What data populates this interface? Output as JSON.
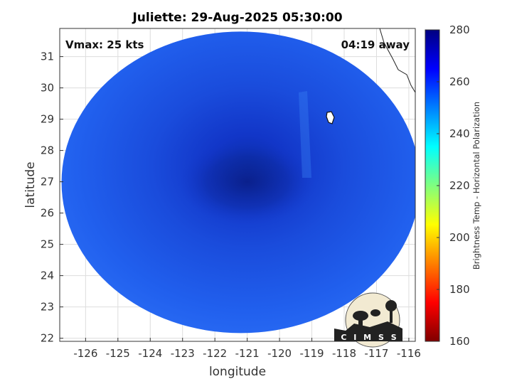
{
  "title": "Juliette: 29-Aug-2025 05:30:00",
  "overlay": {
    "vmax": "Vmax: 25 kts",
    "away": "04:19 away"
  },
  "logo": {
    "text": "CIMSS"
  },
  "chart_data": {
    "type": "heatmap",
    "title": "Juliette: 29-Aug-2025 05:30:00",
    "xlabel": "longitude",
    "ylabel": "latitude",
    "xlim": [
      -126.8,
      -115.8
    ],
    "ylim": [
      21.9,
      31.9
    ],
    "x_ticks": [
      -126,
      -125,
      -124,
      -123,
      -122,
      -121,
      -120,
      -119,
      -118,
      -117,
      -116
    ],
    "y_ticks": [
      22,
      23,
      24,
      25,
      26,
      27,
      28,
      29,
      30,
      31
    ],
    "grid": true,
    "colorbar": {
      "label": "Brightness Temp - Horizontal Polarization",
      "range": [
        160,
        280
      ],
      "ticks": [
        160,
        180,
        200,
        220,
        240,
        260,
        280
      ],
      "colormap": "jet"
    },
    "swath": {
      "center": [
        -121.2,
        26.8
      ],
      "fill_value_range": [
        250,
        268
      ]
    },
    "cold_core": {
      "center": [
        -121.0,
        27.0
      ],
      "min_value": 272
    },
    "features": [
      "coastline (upper right)",
      "small island near -118.5, 29.0"
    ]
  }
}
